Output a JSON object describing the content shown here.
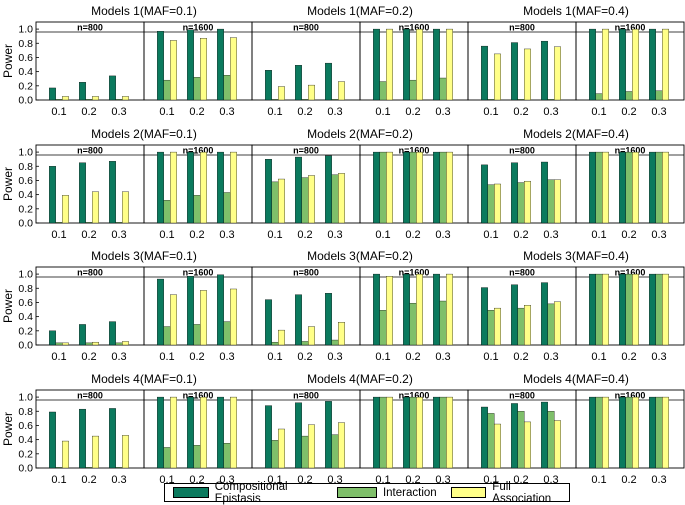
{
  "chart_data": {
    "type": "bar",
    "ylabel": "Power",
    "categories": [
      "0.1",
      "0.2",
      "0.3"
    ],
    "yticks": [
      "0.0",
      "0.2",
      "0.4",
      "0.6",
      "0.8",
      "1.0"
    ],
    "ylim": [
      0,
      1.1
    ],
    "series_names": [
      "Compositional Epistasis",
      "Interaction",
      "Full Association"
    ],
    "colors": [
      "#0b7a5e",
      "#7fbf6a",
      "#ffff88"
    ],
    "rows": [
      {
        "groups": [
          {
            "title": "Models 1(MAF=0.1)",
            "panels": [
              {
                "n": "n=800",
                "values": [
                  [
                    0.17,
                    0.01,
                    0.05
                  ],
                  [
                    0.25,
                    0.01,
                    0.05
                  ],
                  [
                    0.34,
                    0.01,
                    0.05
                  ]
                ]
              },
              {
                "n": "n=1600",
                "values": [
                  [
                    0.97,
                    0.28,
                    0.84
                  ],
                  [
                    0.99,
                    0.32,
                    0.87
                  ],
                  [
                    1.0,
                    0.35,
                    0.88
                  ]
                ]
              }
            ]
          },
          {
            "title": "Models 1(MAF=0.2)",
            "panels": [
              {
                "n": "n=800",
                "values": [
                  [
                    0.42,
                    0.01,
                    0.19
                  ],
                  [
                    0.49,
                    0.01,
                    0.21
                  ],
                  [
                    0.52,
                    0.01,
                    0.26
                  ]
                ]
              },
              {
                "n": "n=1600",
                "values": [
                  [
                    1.0,
                    0.26,
                    1.0
                  ],
                  [
                    1.0,
                    0.28,
                    1.0
                  ],
                  [
                    1.0,
                    0.31,
                    1.0
                  ]
                ]
              }
            ]
          },
          {
            "title": "Models 1(MAF=0.4)",
            "panels": [
              {
                "n": "n=800",
                "values": [
                  [
                    0.76,
                    0.01,
                    0.65
                  ],
                  [
                    0.81,
                    0.01,
                    0.72
                  ],
                  [
                    0.83,
                    0.01,
                    0.75
                  ]
                ]
              },
              {
                "n": "n=1600",
                "values": [
                  [
                    1.0,
                    0.09,
                    1.0
                  ],
                  [
                    1.0,
                    0.12,
                    1.0
                  ],
                  [
                    1.0,
                    0.13,
                    1.0
                  ]
                ]
              }
            ]
          }
        ]
      },
      {
        "groups": [
          {
            "title": "Models 2(MAF=0.1)",
            "panels": [
              {
                "n": "n=800",
                "values": [
                  [
                    0.8,
                    0.01,
                    0.39
                  ],
                  [
                    0.85,
                    0.01,
                    0.44
                  ],
                  [
                    0.87,
                    0.01,
                    0.44
                  ]
                ]
              },
              {
                "n": "n=1600",
                "values": [
                  [
                    1.0,
                    0.32,
                    1.0
                  ],
                  [
                    1.0,
                    0.39,
                    1.0
                  ],
                  [
                    1.0,
                    0.43,
                    1.0
                  ]
                ]
              }
            ]
          },
          {
            "title": "Models 2(MAF=0.2)",
            "panels": [
              {
                "n": "n=800",
                "values": [
                  [
                    0.9,
                    0.58,
                    0.62
                  ],
                  [
                    0.93,
                    0.64,
                    0.67
                  ],
                  [
                    0.95,
                    0.68,
                    0.7
                  ]
                ]
              },
              {
                "n": "n=1600",
                "values": [
                  [
                    1.0,
                    1.0,
                    1.0
                  ],
                  [
                    1.0,
                    1.0,
                    1.0
                  ],
                  [
                    1.0,
                    1.0,
                    1.0
                  ]
                ]
              }
            ]
          },
          {
            "title": "Models 2(MAF=0.4)",
            "panels": [
              {
                "n": "n=800",
                "values": [
                  [
                    0.82,
                    0.54,
                    0.55
                  ],
                  [
                    0.85,
                    0.57,
                    0.59
                  ],
                  [
                    0.86,
                    0.61,
                    0.61
                  ]
                ]
              },
              {
                "n": "n=1600",
                "values": [
                  [
                    1.0,
                    1.0,
                    1.0
                  ],
                  [
                    1.0,
                    1.0,
                    1.0
                  ],
                  [
                    1.0,
                    1.0,
                    1.0
                  ]
                ]
              }
            ]
          }
        ]
      },
      {
        "groups": [
          {
            "title": "Models 3(MAF=0.1)",
            "panels": [
              {
                "n": "n=800",
                "values": [
                  [
                    0.2,
                    0.03,
                    0.03
                  ],
                  [
                    0.29,
                    0.03,
                    0.04
                  ],
                  [
                    0.33,
                    0.03,
                    0.05
                  ]
                ]
              },
              {
                "n": "n=1600",
                "values": [
                  [
                    0.93,
                    0.26,
                    0.71
                  ],
                  [
                    0.97,
                    0.29,
                    0.77
                  ],
                  [
                    0.99,
                    0.33,
                    0.79
                  ]
                ]
              }
            ]
          },
          {
            "title": "Models 3(MAF=0.2)",
            "panels": [
              {
                "n": "n=800",
                "values": [
                  [
                    0.64,
                    0.04,
                    0.21
                  ],
                  [
                    0.71,
                    0.05,
                    0.26
                  ],
                  [
                    0.73,
                    0.07,
                    0.32
                  ]
                ]
              },
              {
                "n": "n=1600",
                "values": [
                  [
                    1.0,
                    0.49,
                    0.97
                  ],
                  [
                    1.0,
                    0.59,
                    1.0
                  ],
                  [
                    1.0,
                    0.62,
                    1.0
                  ]
                ]
              }
            ]
          },
          {
            "title": "Models 3(MAF=0.4)",
            "panels": [
              {
                "n": "n=800",
                "values": [
                  [
                    0.81,
                    0.49,
                    0.52
                  ],
                  [
                    0.85,
                    0.52,
                    0.56
                  ],
                  [
                    0.88,
                    0.58,
                    0.61
                  ]
                ]
              },
              {
                "n": "n=1600",
                "values": [
                  [
                    1.0,
                    1.0,
                    1.0
                  ],
                  [
                    1.0,
                    1.0,
                    1.0
                  ],
                  [
                    1.0,
                    1.0,
                    1.0
                  ]
                ]
              }
            ]
          }
        ]
      },
      {
        "groups": [
          {
            "title": "Models 4(MAF=0.1)",
            "panels": [
              {
                "n": "n=800",
                "values": [
                  [
                    0.79,
                    0.01,
                    0.38
                  ],
                  [
                    0.83,
                    0.01,
                    0.45
                  ],
                  [
                    0.84,
                    0.01,
                    0.46
                  ]
                ]
              },
              {
                "n": "n=1600",
                "values": [
                  [
                    1.0,
                    0.29,
                    1.0
                  ],
                  [
                    1.0,
                    0.32,
                    1.0
                  ],
                  [
                    1.0,
                    0.35,
                    1.0
                  ]
                ]
              }
            ]
          },
          {
            "title": "Models 4(MAF=0.2)",
            "panels": [
              {
                "n": "n=800",
                "values": [
                  [
                    0.88,
                    0.39,
                    0.55
                  ],
                  [
                    0.92,
                    0.45,
                    0.61
                  ],
                  [
                    0.94,
                    0.47,
                    0.64
                  ]
                ]
              },
              {
                "n": "n=1600",
                "values": [
                  [
                    1.0,
                    1.0,
                    1.0
                  ],
                  [
                    1.0,
                    1.0,
                    1.0
                  ],
                  [
                    1.0,
                    1.0,
                    1.0
                  ]
                ]
              }
            ]
          },
          {
            "title": "Models 4(MAF=0.4)",
            "panels": [
              {
                "n": "n=800",
                "values": [
                  [
                    0.86,
                    0.77,
                    0.62
                  ],
                  [
                    0.91,
                    0.8,
                    0.65
                  ],
                  [
                    0.93,
                    0.8,
                    0.67
                  ]
                ]
              },
              {
                "n": "n=1600",
                "values": [
                  [
                    1.0,
                    1.0,
                    1.0
                  ],
                  [
                    1.0,
                    1.0,
                    1.0
                  ],
                  [
                    1.0,
                    1.0,
                    1.0
                  ]
                ]
              }
            ]
          }
        ]
      }
    ]
  }
}
